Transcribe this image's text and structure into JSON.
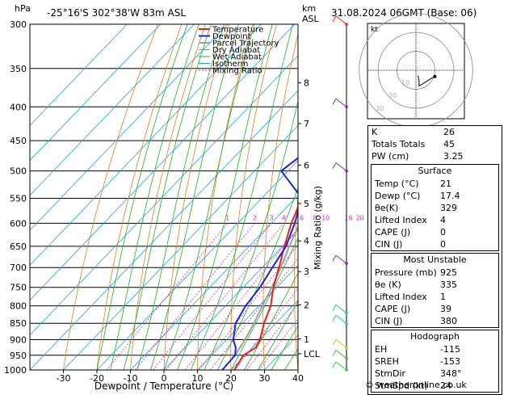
{
  "header": {
    "hpa_label": "hPa",
    "location": "-25°16'S  302°38'W  83m  ASL",
    "km_label": "km",
    "asl_label": "ASL",
    "datetime": "31.08.2024  06GMT  (Base: 06)"
  },
  "credit": "© weatheronline.co.uk",
  "colors": {
    "temperature": "#e82020",
    "dewpoint": "#2020e0",
    "parcel": "#a0a0a0",
    "dry_adiabat": "#e08020",
    "wet_adiabat": "#20b020",
    "isotherm": "#20a0e0",
    "mixing_ratio": "#e020c0",
    "wind_purple": "#9020c0",
    "wind_cyan": "#20c0c0",
    "wind_yellow": "#d0c020",
    "wind_green": "#40c040"
  },
  "chart_data": {
    "type": "skew-t",
    "xlabel": "Dewpoint / Temperature (°C)",
    "ylabel": "Mixing Ratio (g/kg)",
    "x_ticks": [
      "-30",
      "-20",
      "-10",
      "0",
      "10",
      "20",
      "30",
      "40"
    ],
    "x_tick_values": [
      -30,
      -20,
      -10,
      0,
      10,
      20,
      30,
      40
    ],
    "pressure_ticks": [
      "300",
      "350",
      "400",
      "450",
      "500",
      "550",
      "600",
      "650",
      "700",
      "750",
      "800",
      "850",
      "900",
      "950",
      "1000"
    ],
    "pressure_values": [
      300,
      350,
      400,
      450,
      500,
      550,
      600,
      650,
      700,
      750,
      800,
      850,
      900,
      950,
      1000
    ],
    "km_ticks": [
      {
        "label": "8",
        "p": 368
      },
      {
        "label": "7",
        "p": 424
      },
      {
        "label": "6",
        "p": 490
      },
      {
        "label": "5",
        "p": 560
      },
      {
        "label": "4",
        "p": 638
      },
      {
        "label": "3",
        "p": 710
      },
      {
        "label": "2",
        "p": 797
      },
      {
        "label": "1",
        "p": 898
      },
      {
        "label": "LCL",
        "p": 945
      }
    ],
    "mixing_ratio_labels": [
      "1",
      "2",
      "3",
      "4",
      "6",
      "8",
      "10",
      "16",
      "20",
      "25"
    ],
    "mixing_ratio_values": [
      1,
      2,
      3,
      4,
      6,
      8,
      10,
      16,
      20,
      25
    ],
    "legend": [
      "Temperature",
      "Dewpoint",
      "Parcel Trajectory",
      "Dry Adiabat",
      "Wet Adiabat",
      "Isotherm",
      "Mixing Ratio"
    ],
    "temperature": {
      "p": [
        1000,
        950,
        925,
        900,
        850,
        800,
        750,
        700,
        650,
        600,
        550,
        500,
        450,
        400,
        350,
        300
      ],
      "t": [
        21,
        19.5,
        21,
        20,
        16.5,
        13.5,
        9,
        5,
        0.5,
        -4,
        -8,
        -11.5,
        -16.5,
        -22.5,
        -30.5,
        -39
      ]
    },
    "dewpoint": {
      "p": [
        1000,
        950,
        925,
        900,
        850,
        800,
        750,
        700,
        650,
        600,
        550,
        500,
        450,
        400,
        350,
        300
      ],
      "td": [
        17.4,
        17,
        15,
        12,
        8,
        6,
        5,
        3,
        1,
        -3,
        -8,
        -22,
        -19,
        -30,
        -34,
        -40
      ]
    },
    "parcel": {
      "p": [
        950,
        900,
        850,
        800,
        750,
        700,
        650,
        600,
        550,
        500,
        450,
        400,
        350,
        300
      ],
      "t": [
        17,
        15.5,
        13.5,
        11,
        8.5,
        5.5,
        2,
        -1.5,
        -6,
        -10.5,
        -16,
        -22,
        -28.5,
        -35
      ]
    }
  },
  "indices": {
    "rows": [
      {
        "label": "K",
        "value": "26"
      },
      {
        "label": "Totals Totals",
        "value": "45"
      },
      {
        "label": "PW (cm)",
        "value": "3.25"
      }
    ]
  },
  "surface": {
    "title": "Surface",
    "rows": [
      {
        "label": "Temp (°C)",
        "value": "21"
      },
      {
        "label": "Dewp (°C)",
        "value": "17.4"
      },
      {
        "label": "θe(K)",
        "value": "329"
      },
      {
        "label": "Lifted Index",
        "value": "4"
      },
      {
        "label": "CAPE (J)",
        "value": "0"
      },
      {
        "label": "CIN (J)",
        "value": "0"
      }
    ]
  },
  "unstable": {
    "title": "Most Unstable",
    "rows": [
      {
        "label": "Pressure (mb)",
        "value": "925"
      },
      {
        "label": "θe (K)",
        "value": "335"
      },
      {
        "label": "Lifted Index",
        "value": "1"
      },
      {
        "label": "CAPE (J)",
        "value": "39"
      },
      {
        "label": "CIN (J)",
        "value": "380"
      }
    ]
  },
  "hodograph_table": {
    "title": "Hodograph",
    "rows": [
      {
        "label": "EH",
        "value": "-115"
      },
      {
        "label": "SREH",
        "value": "-153"
      },
      {
        "label": "StmDir",
        "value": "348°"
      },
      {
        "label": "StmSpd (kt)",
        "value": "24"
      }
    ]
  },
  "hodograph": {
    "unit_label": "kt",
    "ring_labels": [
      "10",
      "20",
      "30"
    ],
    "points_kt": [
      [
        2,
        -5
      ],
      [
        3,
        -10
      ],
      [
        3,
        -15
      ],
      [
        8,
        -12
      ],
      [
        14,
        -8
      ],
      [
        18,
        -6
      ]
    ]
  }
}
